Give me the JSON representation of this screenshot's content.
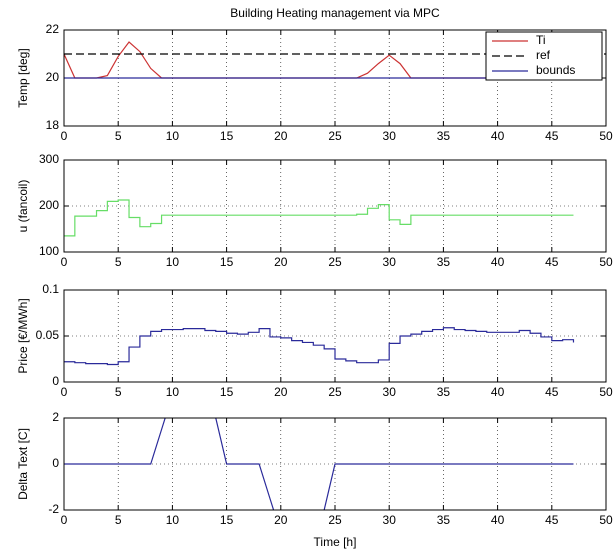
{
  "chart_data": [
    {
      "type": "line",
      "title": "Building Heating management via MPC",
      "ylabel": "Temp [deg]",
      "x": [
        0,
        1,
        2,
        3,
        4,
        5,
        6,
        7,
        8,
        9,
        10,
        11,
        12,
        13,
        14,
        15,
        16,
        17,
        18,
        19,
        20,
        21,
        22,
        23,
        24,
        25,
        26,
        27,
        28,
        29,
        30,
        31,
        32,
        33,
        34,
        35,
        36,
        37,
        38,
        39,
        40,
        41,
        42,
        43,
        44,
        45,
        46,
        47
      ],
      "series": [
        {
          "name": "Ti",
          "color": "#cc3333",
          "linestyle": "solid",
          "values": [
            21,
            20,
            20,
            20,
            20.1,
            20.9,
            21.5,
            21.1,
            20.4,
            20,
            20,
            20,
            20,
            20,
            20,
            20,
            20,
            20,
            20,
            20,
            20,
            20,
            20,
            20,
            20,
            20,
            20,
            20,
            20.2,
            20.6,
            20.95,
            20.6,
            20,
            20,
            20,
            20,
            20,
            20,
            20,
            20,
            20,
            20,
            20,
            20,
            20,
            20,
            20,
            20
          ]
        },
        {
          "name": "ref",
          "color": "#000000",
          "linestyle": "dashed",
          "x": [
            0,
            50
          ],
          "values": [
            21,
            21
          ]
        },
        {
          "name": "bounds",
          "color": "#2a2a9a",
          "linestyle": "solid",
          "values": [
            20,
            20,
            20,
            20,
            20,
            20,
            20,
            20,
            20,
            20,
            20,
            20,
            20,
            20,
            20,
            20,
            20,
            20,
            20,
            20,
            20,
            20,
            20,
            20,
            20,
            20,
            20,
            20,
            20,
            20,
            20,
            20,
            20,
            20,
            20,
            20,
            20,
            20,
            20,
            20,
            20,
            20,
            20,
            20,
            20,
            20,
            20,
            20
          ]
        }
      ],
      "xlim": [
        0,
        50
      ],
      "xticks": [
        0,
        5,
        10,
        15,
        20,
        25,
        30,
        35,
        40,
        45,
        50
      ],
      "ylim": [
        18,
        22
      ],
      "yticks": [
        18,
        20,
        22
      ],
      "grid": true,
      "legend": "northeast"
    },
    {
      "type": "step",
      "ylabel": "u (fancoil)",
      "x": [
        0,
        1,
        2,
        3,
        4,
        5,
        6,
        7,
        8,
        9,
        10,
        11,
        12,
        13,
        14,
        15,
        16,
        17,
        18,
        19,
        20,
        21,
        22,
        23,
        24,
        25,
        26,
        27,
        28,
        29,
        30,
        31,
        32,
        33,
        34,
        35,
        36,
        37,
        38,
        39,
        40,
        41,
        42,
        43,
        44,
        45,
        46,
        47
      ],
      "series": [
        {
          "color": "#66dd66",
          "values": [
            135,
            178,
            178,
            190,
            210,
            213,
            175,
            155,
            162,
            180,
            180,
            180,
            180,
            180,
            180,
            180,
            180,
            180,
            180,
            180,
            180,
            180,
            180,
            180,
            180,
            180,
            180,
            182,
            195,
            203,
            170,
            160,
            180,
            180,
            180,
            180,
            180,
            180,
            180,
            180,
            180,
            180,
            180,
            180,
            180,
            180,
            180,
            180
          ]
        }
      ],
      "xlim": [
        0,
        50
      ],
      "xticks": [
        0,
        5,
        10,
        15,
        20,
        25,
        30,
        35,
        40,
        45,
        50
      ],
      "ylim": [
        100,
        300
      ],
      "yticks": [
        100,
        200,
        300
      ],
      "grid": true
    },
    {
      "type": "step",
      "ylabel": "Price [€/MWh]",
      "x": [
        0,
        1,
        2,
        3,
        4,
        5,
        6,
        7,
        8,
        9,
        10,
        11,
        12,
        13,
        14,
        15,
        16,
        17,
        18,
        19,
        20,
        21,
        22,
        23,
        24,
        25,
        26,
        27,
        28,
        29,
        30,
        31,
        32,
        33,
        34,
        35,
        36,
        37,
        38,
        39,
        40,
        41,
        42,
        43,
        44,
        45,
        46,
        47
      ],
      "series": [
        {
          "color": "#2a2a9a",
          "values": [
            0.022,
            0.021,
            0.02,
            0.02,
            0.019,
            0.022,
            0.038,
            0.05,
            0.055,
            0.057,
            0.057,
            0.058,
            0.058,
            0.056,
            0.055,
            0.053,
            0.052,
            0.054,
            0.058,
            0.049,
            0.048,
            0.045,
            0.043,
            0.04,
            0.036,
            0.025,
            0.023,
            0.021,
            0.021,
            0.024,
            0.042,
            0.05,
            0.052,
            0.055,
            0.057,
            0.059,
            0.057,
            0.056,
            0.055,
            0.054,
            0.054,
            0.054,
            0.056,
            0.053,
            0.049,
            0.045,
            0.046,
            0.043
          ]
        }
      ],
      "xlim": [
        0,
        50
      ],
      "xticks": [
        0,
        5,
        10,
        15,
        20,
        25,
        30,
        35,
        40,
        45,
        50
      ],
      "ylim": [
        0,
        0.1
      ],
      "yticks": [
        0,
        0.05,
        0.1
      ],
      "grid": true
    },
    {
      "type": "line",
      "ylabel": "Delta Text [C]",
      "xlabel": "Time [h]",
      "x": [
        0,
        1,
        2,
        3,
        4,
        5,
        6,
        7,
        8,
        9,
        10,
        11,
        12,
        13,
        14,
        15,
        16,
        17,
        18,
        19,
        20,
        21,
        22,
        23,
        24,
        25,
        26,
        27,
        28,
        29,
        30,
        31,
        32,
        33,
        34,
        35,
        36,
        37,
        38,
        39,
        40,
        41,
        42,
        43,
        44,
        45,
        46,
        47
      ],
      "series": [
        {
          "color": "#2a2a9a",
          "linestyle": "solid",
          "values": [
            0,
            0,
            0,
            0,
            0,
            0,
            0,
            0,
            0,
            1.5,
            3,
            3,
            3,
            3,
            2,
            0,
            0,
            0,
            0,
            -1.5,
            -3,
            -3,
            -3,
            -3,
            -2,
            0,
            0,
            0,
            0,
            0,
            0,
            0,
            0,
            0,
            0,
            0,
            0,
            0,
            0,
            0,
            0,
            0,
            0,
            0,
            0,
            0,
            0,
            0
          ]
        }
      ],
      "xlim": [
        0,
        50
      ],
      "xticks": [
        0,
        5,
        10,
        15,
        20,
        25,
        30,
        35,
        40,
        45,
        50
      ],
      "ylim": [
        -2,
        2
      ],
      "yticks": [
        -2,
        0,
        2
      ],
      "grid": true
    }
  ]
}
